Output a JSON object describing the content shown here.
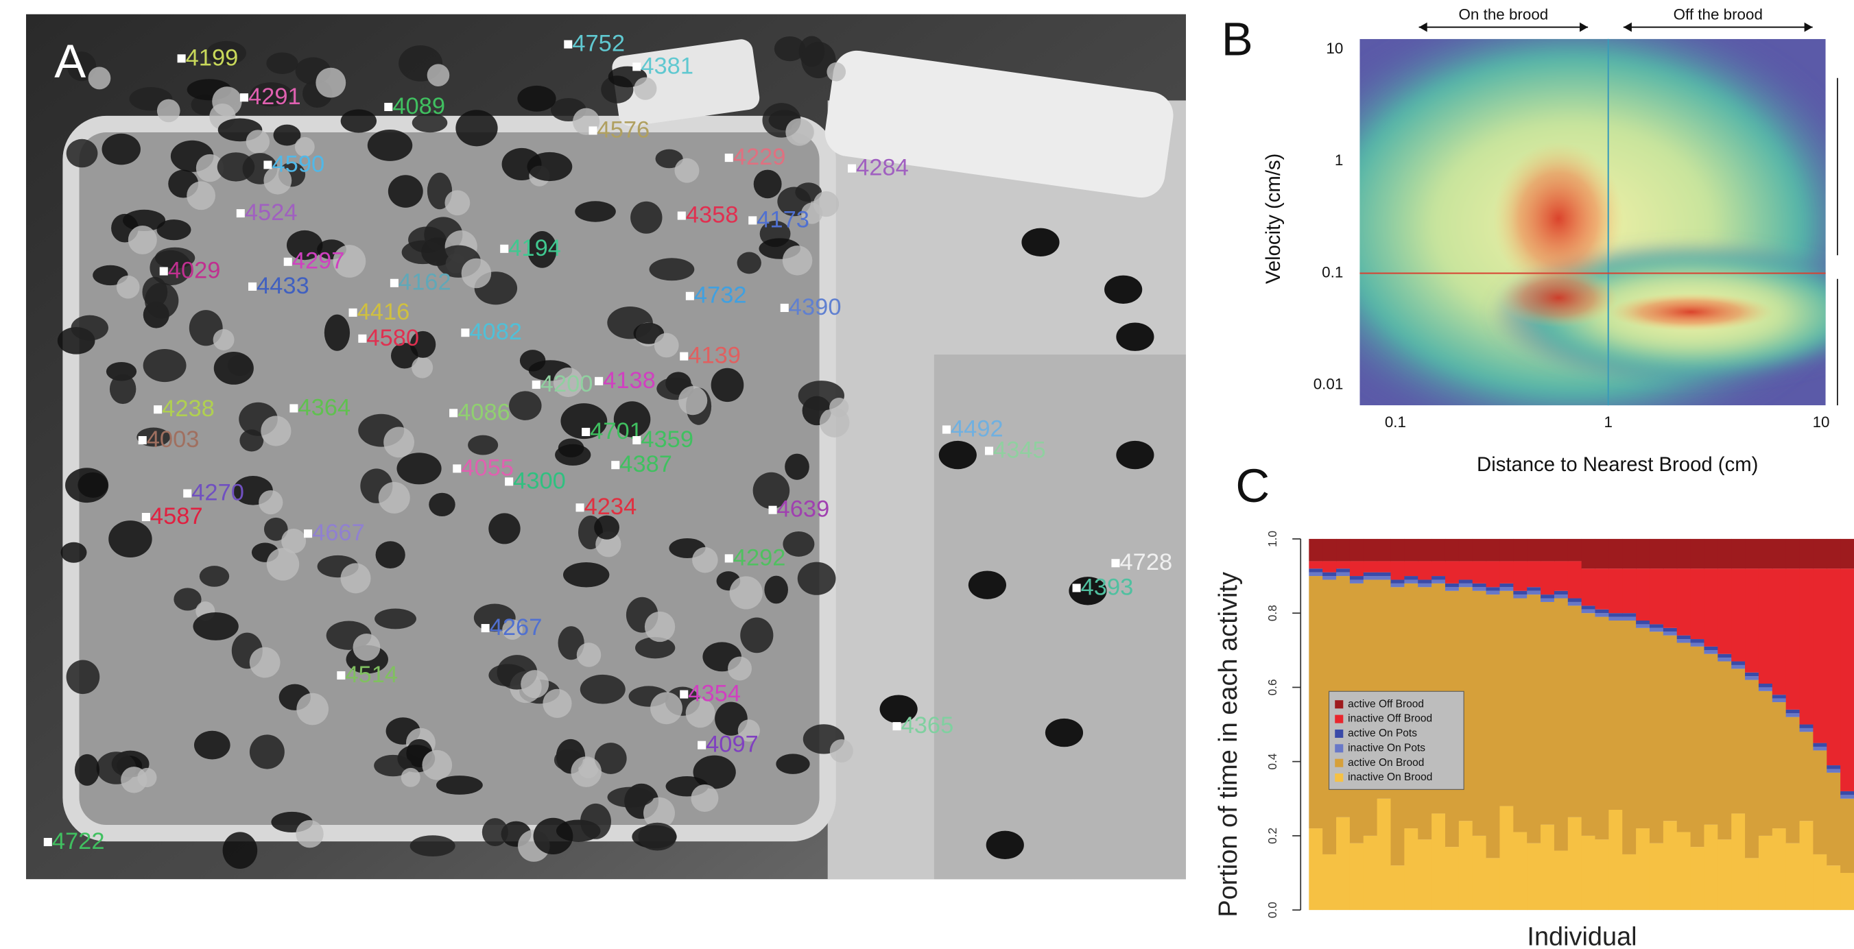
{
  "panel_a": {
    "label": "A",
    "tags": [
      {
        "text": "4199",
        "color": "#c8d85a"
      },
      {
        "text": "4291",
        "color": "#e060b0"
      },
      {
        "text": "4089",
        "color": "#40c060"
      },
      {
        "text": "4752",
        "color": "#60c8d0"
      },
      {
        "text": "4381",
        "color": "#60c8d0"
      },
      {
        "text": "4576",
        "color": "#b0a060"
      },
      {
        "text": "4590",
        "color": "#50b8e8"
      },
      {
        "text": "4229",
        "color": "#e07080"
      },
      {
        "text": "4284",
        "color": "#a060c0"
      },
      {
        "text": "4524",
        "color": "#a060c0"
      },
      {
        "text": "4358",
        "color": "#e03050"
      },
      {
        "text": "4173",
        "color": "#5070d0"
      },
      {
        "text": "4194",
        "color": "#40c890"
      },
      {
        "text": "4297",
        "color": "#d040c0"
      },
      {
        "text": "4029",
        "color": "#c03090"
      },
      {
        "text": "4433",
        "color": "#4060c0"
      },
      {
        "text": "4162",
        "color": "#60a8b8"
      },
      {
        "text": "4732",
        "color": "#40a0e0"
      },
      {
        "text": "4390",
        "color": "#6080d0"
      },
      {
        "text": "4416",
        "color": "#d0c040"
      },
      {
        "text": "4580",
        "color": "#e03050"
      },
      {
        "text": "4082",
        "color": "#50c0d8"
      },
      {
        "text": "4139",
        "color": "#e06060"
      },
      {
        "text": "4200",
        "color": "#90d0a0"
      },
      {
        "text": "4138",
        "color": "#d040c0"
      },
      {
        "text": "4238",
        "color": "#b0d050"
      },
      {
        "text": "4364",
        "color": "#60c050"
      },
      {
        "text": "4086",
        "color": "#90d070"
      },
      {
        "text": "4701",
        "color": "#40c060"
      },
      {
        "text": "4359",
        "color": "#40c060"
      },
      {
        "text": "4003",
        "color": "#a07060"
      },
      {
        "text": "4387",
        "color": "#40c060"
      },
      {
        "text": "4055",
        "color": "#e060b0"
      },
      {
        "text": "4300",
        "color": "#30c080"
      },
      {
        "text": "4270",
        "color": "#7050c0"
      },
      {
        "text": "4234",
        "color": "#e03040"
      },
      {
        "text": "4639",
        "color": "#a040b0"
      },
      {
        "text": "4587",
        "color": "#e02040"
      },
      {
        "text": "4667",
        "color": "#9080d0"
      },
      {
        "text": "4492",
        "color": "#70b0e0"
      },
      {
        "text": "4345",
        "color": "#90d0a0"
      },
      {
        "text": "4292",
        "color": "#50c060"
      },
      {
        "text": "4728",
        "color": "#f0f0f0"
      },
      {
        "text": "4393",
        "color": "#50c0a0"
      },
      {
        "text": "4267",
        "color": "#5070d0"
      },
      {
        "text": "4514",
        "color": "#80c060"
      },
      {
        "text": "4354",
        "color": "#d040c0"
      },
      {
        "text": "4097",
        "color": "#8040c0"
      },
      {
        "text": "4365",
        "color": "#80d0a0"
      },
      {
        "text": "4722",
        "color": "#40c060"
      }
    ]
  },
  "chart_data": [
    {
      "type": "heatmap",
      "panel_label": "B",
      "xlabel": "Distance to Nearest Brood (cm)",
      "ylabel": "Velocity (cm/s)",
      "xscale": "log",
      "yscale": "log",
      "xlim": [
        0.068,
        10.5
      ],
      "ylim": [
        0.0066,
        12.4
      ],
      "xticks": [
        0.1,
        1,
        10
      ],
      "yticks": [
        0.01,
        0.1,
        1,
        10
      ],
      "annotations": [
        "On the brood",
        "Off the brood"
      ]
    },
    {
      "type": "stacked_bar",
      "panel_label": "C",
      "xlabel": "Individual",
      "ylabel": "Portion of time in each activity",
      "legend_position": "left",
      "categories": [
        null,
        null,
        null,
        null,
        null,
        null,
        null,
        null,
        null,
        null,
        null,
        null,
        null,
        null,
        null,
        null,
        null,
        null,
        null,
        null,
        null,
        null,
        null,
        null,
        null,
        null,
        null,
        null,
        null,
        null,
        null,
        null,
        null,
        null,
        null,
        null,
        null,
        null,
        null,
        null
      ],
      "ylim": [
        0,
        1
      ],
      "yticks": [
        {
          "value": 0,
          "label": "0.0"
        },
        {
          "value": 0.2,
          "label": "0.2"
        },
        {
          "value": 0.4,
          "label": "0.4"
        },
        {
          "value": 0.6,
          "label": "0.6"
        },
        {
          "value": 0.8,
          "label": "0.8"
        },
        {
          "value": 1,
          "label": "1.0"
        }
      ],
      "series": [
        {
          "name": "inactive On Brood",
          "color": "#f6c143",
          "values": [
            0.22,
            0.15,
            0.25,
            0.18,
            0.2,
            0.3,
            0.12,
            0.22,
            0.19,
            0.26,
            0.17,
            0.24,
            0.2,
            0.14,
            0.28,
            0.21,
            0.18,
            0.23,
            0.16,
            0.25,
            0.2,
            0.19,
            0.27,
            0.15,
            0.22,
            0.18,
            0.24,
            0.21,
            0.17,
            0.23,
            0.19,
            0.26,
            0.14,
            0.2,
            0.22,
            0.18,
            0.24,
            0.15,
            0.12,
            0.1
          ]
        },
        {
          "name": "active On Brood",
          "color": "#d6a03a",
          "values": [
            0.68,
            0.74,
            0.65,
            0.7,
            0.69,
            0.59,
            0.75,
            0.66,
            0.68,
            0.62,
            0.69,
            0.63,
            0.66,
            0.71,
            0.58,
            0.63,
            0.67,
            0.6,
            0.68,
            0.57,
            0.6,
            0.6,
            0.51,
            0.63,
            0.54,
            0.57,
            0.5,
            0.51,
            0.54,
            0.46,
            0.48,
            0.39,
            0.48,
            0.39,
            0.34,
            0.34,
            0.24,
            0.28,
            0.25,
            0.2
          ]
        },
        {
          "name": "inactive On Pots",
          "color": "#6878c8",
          "values": [
            0.01,
            0.01,
            0.01,
            0.01,
            0.01,
            0.01,
            0.01,
            0.01,
            0.01,
            0.01,
            0.01,
            0.01,
            0.01,
            0.01,
            0.01,
            0.01,
            0.01,
            0.01,
            0.01,
            0.01,
            0.01,
            0.01,
            0.01,
            0.01,
            0.01,
            0.01,
            0.01,
            0.01,
            0.01,
            0.01,
            0.01,
            0.01,
            0.01,
            0.01,
            0.01,
            0.01,
            0.01,
            0.01,
            0.01,
            0.01
          ]
        },
        {
          "name": "active On Pots",
          "color": "#3a4aa8",
          "values": [
            0.01,
            0.01,
            0.01,
            0.01,
            0.01,
            0.01,
            0.01,
            0.01,
            0.01,
            0.01,
            0.01,
            0.01,
            0.01,
            0.01,
            0.01,
            0.01,
            0.01,
            0.01,
            0.01,
            0.01,
            0.01,
            0.01,
            0.01,
            0.01,
            0.01,
            0.01,
            0.01,
            0.01,
            0.01,
            0.01,
            0.01,
            0.01,
            0.01,
            0.01,
            0.01,
            0.01,
            0.01,
            0.01,
            0.01,
            0.01
          ]
        },
        {
          "name": "inactive Off Brood",
          "color": "#e8262d",
          "values": [
            0.02,
            0.03,
            0.02,
            0.04,
            0.03,
            0.03,
            0.05,
            0.04,
            0.05,
            0.04,
            0.06,
            0.05,
            0.06,
            0.07,
            0.06,
            0.08,
            0.07,
            0.09,
            0.08,
            0.1,
            0.1,
            0.11,
            0.12,
            0.12,
            0.14,
            0.15,
            0.16,
            0.18,
            0.19,
            0.21,
            0.23,
            0.25,
            0.28,
            0.31,
            0.34,
            0.38,
            0.42,
            0.47,
            0.53,
            0.6
          ]
        },
        {
          "name": "active Off Brood",
          "color": "#9e1b1e",
          "values": [
            0.06,
            0.06,
            0.06,
            0.06,
            0.06,
            0.06,
            0.06,
            0.06,
            0.06,
            0.06,
            0.06,
            0.06,
            0.06,
            0.06,
            0.06,
            0.06,
            0.06,
            0.06,
            0.06,
            0.06,
            0.08,
            0.08,
            0.08,
            0.08,
            0.08,
            0.08,
            0.08,
            0.08,
            0.08,
            0.08,
            0.08,
            0.08,
            0.08,
            0.08,
            0.08,
            0.08,
            0.08,
            0.08,
            0.08,
            0.08
          ]
        }
      ]
    }
  ]
}
